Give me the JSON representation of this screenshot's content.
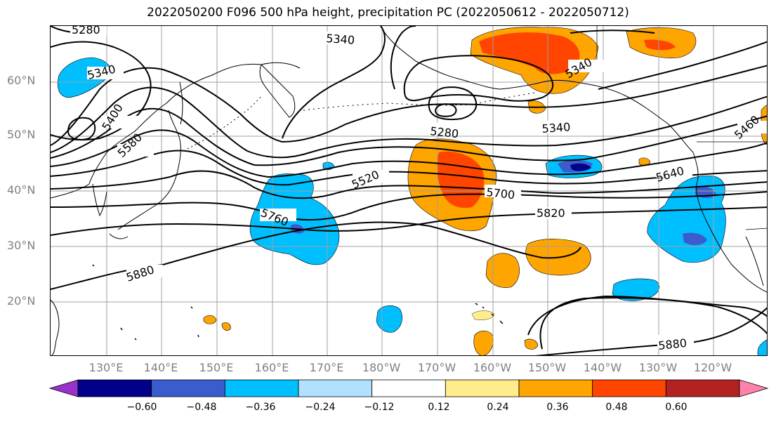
{
  "title": "2022050200 F096 500 hPa height, precipitation PC (2022050612 - 2022050712)",
  "latitude_labels": [
    "60°N",
    "50°N",
    "40°N",
    "30°N",
    "20°N"
  ],
  "longitude_labels": [
    "130°E",
    "140°E",
    "150°E",
    "160°E",
    "170°E",
    "180°W",
    "170°W",
    "160°W",
    "150°W",
    "140°W",
    "130°W",
    "120°W"
  ],
  "contour_labels": [
    "5280",
    "5340",
    "5340",
    "5340",
    "5340",
    "5280",
    "5400",
    "5580",
    "5520",
    "5760",
    "5700",
    "5820",
    "5640",
    "5460",
    "5880",
    "5880"
  ],
  "colorbar": {
    "colors": [
      "#9932cc",
      "#00008b",
      "#3a5ccc",
      "#00bfff",
      "#b0e2ff",
      "#ffffff",
      "#ffec8b",
      "#ffa500",
      "#ff4500",
      "#b22222",
      "#ff82ab"
    ],
    "tick_labels": [
      "−0.60",
      "−0.48",
      "−0.36",
      "−0.24",
      "−0.12",
      "0.12",
      "0.24",
      "0.36",
      "0.48",
      "0.60"
    ]
  },
  "colors": {
    "contour": "#000000",
    "grid": "#a0a0a0",
    "coast": "#000000",
    "axis_labels": "#808080"
  }
}
